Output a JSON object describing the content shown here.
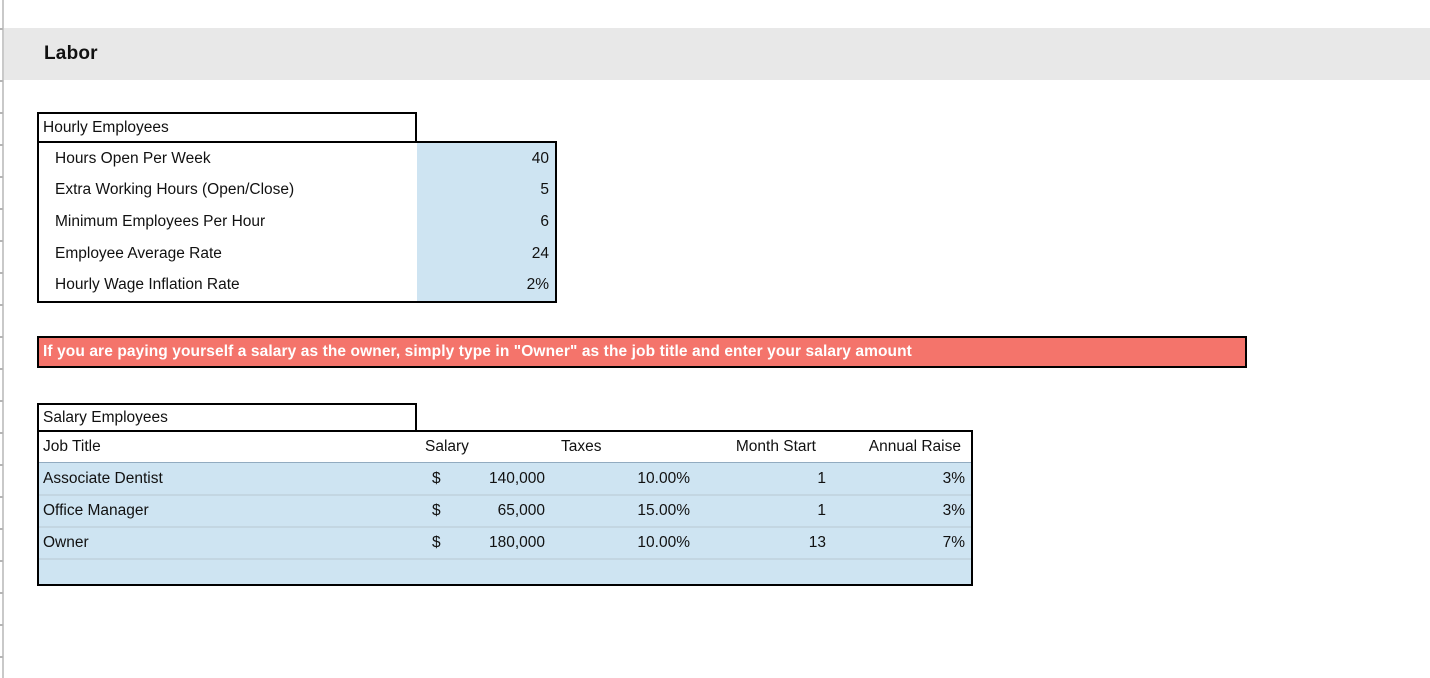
{
  "section": {
    "title": "Labor"
  },
  "colors": {
    "input_cell_blue": "#cee4f2",
    "note_salmon": "#f4746b",
    "section_band_gray": "#e8e8e8",
    "border_black": "#000000",
    "note_text_white": "#ffffff"
  },
  "hourly_table": {
    "title": "Hourly Employees",
    "rows": [
      {
        "label": "Hours Open Per Week",
        "value": "40"
      },
      {
        "label": "Extra Working Hours (Open/Close)",
        "value": "5"
      },
      {
        "label": "Minimum Employees Per Hour",
        "value": "6"
      },
      {
        "label": "Employee Average Rate",
        "value": "24"
      },
      {
        "label": "Hourly Wage Inflation Rate",
        "value": "2%"
      }
    ]
  },
  "note_banner": {
    "text": "If you are paying yourself a salary as the owner, simply type in \"Owner\" as the job title and enter your salary amount"
  },
  "salary_table": {
    "title": "Salary Employees",
    "columns": [
      "Job Title",
      "Salary",
      "Taxes",
      "Month Start",
      "Annual Raise"
    ],
    "rows": [
      {
        "job_title": "Associate Dentist",
        "currency": "$",
        "salary": "140,000",
        "taxes": "10.00%",
        "month_start": "1",
        "annual_raise": "3%"
      },
      {
        "job_title": "Office Manager",
        "currency": "$",
        "salary": "65,000",
        "taxes": "15.00%",
        "month_start": "1",
        "annual_raise": "3%"
      },
      {
        "job_title": "Owner",
        "currency": "$",
        "salary": "180,000",
        "taxes": "10.00%",
        "month_start": "13",
        "annual_raise": "7%"
      }
    ]
  }
}
